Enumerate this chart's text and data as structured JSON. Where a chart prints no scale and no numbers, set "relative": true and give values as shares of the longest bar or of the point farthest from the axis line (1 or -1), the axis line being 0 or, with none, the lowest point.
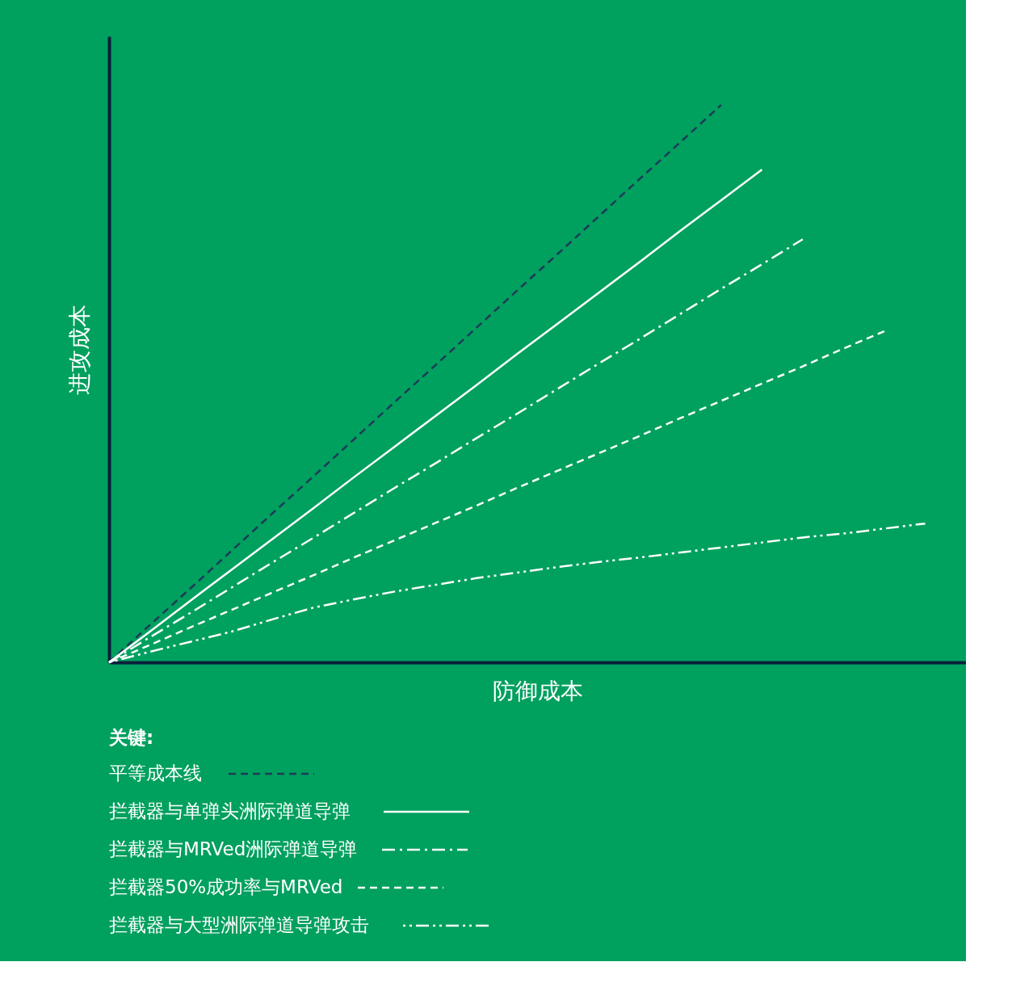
{
  "chart_data": {
    "type": "line",
    "relative": true,
    "xlabel": "防御成本",
    "ylabel": "进攻成本",
    "legend_title": "关键:",
    "legend": "bottom",
    "tick_labels": false,
    "grid": false,
    "marker": "none",
    "categories": [
      null,
      null,
      null,
      null,
      null,
      null,
      null,
      null,
      null,
      null,
      null,
      null,
      null,
      null,
      null,
      null,
      null,
      null,
      null,
      null,
      null,
      null
    ],
    "series": [
      {
        "name": "平等成本线",
        "color": "#1f3a5a",
        "line_style": "dashed",
        "values": [
          0,
          0.067,
          0.133,
          0.2,
          0.267,
          0.333,
          0.4,
          0.467,
          0.533,
          0.6,
          0.667,
          0.733,
          0.8,
          0.867,
          0.933,
          1,
          null,
          null,
          null,
          null,
          null,
          null
        ]
      },
      {
        "name": "拦截器与单弹头洲际弹道导弹",
        "color": "#ffffff",
        "line_style": "solid",
        "values": [
          0,
          0.055,
          0.111,
          0.166,
          0.221,
          0.276,
          0.332,
          0.387,
          0.442,
          0.497,
          0.553,
          0.608,
          0.663,
          0.718,
          0.774,
          0.829,
          0.884,
          null,
          null,
          null,
          null,
          null
        ]
      },
      {
        "name": "拦截器与MRVed洲际弹道导弹",
        "color": "#ffffff",
        "line_style": "dashdot",
        "values": [
          0,
          0.045,
          0.089,
          0.134,
          0.179,
          0.223,
          0.268,
          0.313,
          0.357,
          0.402,
          0.446,
          0.491,
          0.536,
          0.58,
          0.625,
          0.67,
          0.714,
          0.759,
          null,
          null,
          null,
          null
        ]
      },
      {
        "name": "拦截器50%成功率与MRVed",
        "color": "#ffffff",
        "line_style": "dashed",
        "values": [
          0,
          0.031,
          0.063,
          0.094,
          0.125,
          0.156,
          0.188,
          0.219,
          0.25,
          0.281,
          0.313,
          0.344,
          0.375,
          0.406,
          0.438,
          0.469,
          0.5,
          0.531,
          0.563,
          0.594,
          null,
          null
        ]
      },
      {
        "name": "拦截器与大型洲际弹道导弹攻击",
        "color": "#ffffff",
        "line_style": "dashdotdot",
        "values": [
          0,
          0.019,
          0.037,
          0.055,
          0.077,
          0.098,
          0.113,
          0.127,
          0.139,
          0.151,
          0.161,
          0.171,
          0.18,
          0.188,
          0.197,
          0.206,
          0.215,
          0.224,
          0.231,
          0.24,
          0.249,
          null
        ]
      }
    ]
  }
}
